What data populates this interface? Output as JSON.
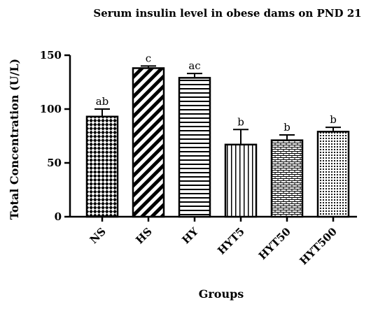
{
  "chart_data": {
    "type": "bar",
    "title": "Serum insulin level in obese dams on PND 21",
    "xlabel": "Groups",
    "ylabel": "Total Concentration (U/L)",
    "ylim": [
      0,
      150
    ],
    "yticks": [
      0,
      50,
      100,
      150
    ],
    "grid": false,
    "legend": "none",
    "categories": [
      "NS",
      "HS",
      "HY",
      "HYT5",
      "HYT50",
      "HYT500"
    ],
    "values": [
      93,
      138,
      129,
      67,
      71,
      79
    ],
    "error_upper": [
      7,
      2,
      4,
      14,
      5,
      4
    ],
    "significance_labels": [
      "ab",
      "c",
      "ac",
      "b",
      "b",
      "b"
    ],
    "fill_patterns": [
      "checkerboard",
      "diagonal-stripes",
      "horizontal-lines",
      "vertical-lines",
      "brick",
      "dots"
    ],
    "bar_color": "#000000"
  }
}
